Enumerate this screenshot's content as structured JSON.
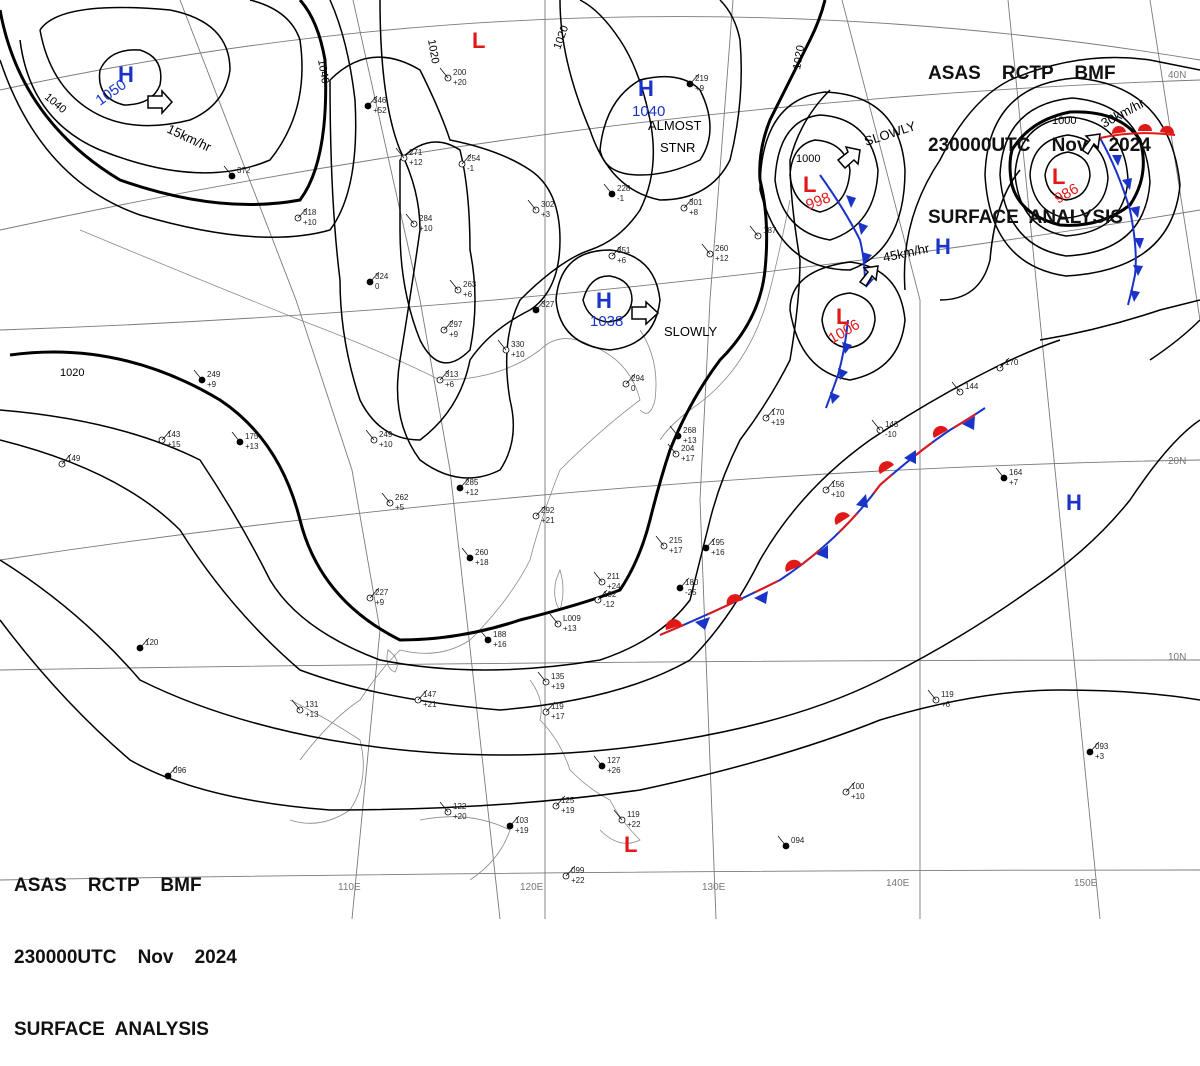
{
  "header": {
    "line1": "ASAS    RCTP    BMF",
    "line2": "230000UTC    Nov    2024",
    "line3": "SURFACE  ANALYSIS"
  },
  "colors": {
    "high": "#1a33c8",
    "low": "#e01818",
    "cold_front": "#1a33c8",
    "warm_front": "#e01818",
    "isobar": "#000000",
    "graticule": "#7a7a7a",
    "coast": "#8a8a8a"
  },
  "graticule_labels": {
    "lon": [
      "110E",
      "120E",
      "130E",
      "140E",
      "150E"
    ],
    "lat": [
      "40N",
      "20N",
      "10N"
    ]
  },
  "pressure_centers": [
    {
      "type": "H",
      "value": "1050",
      "motion": "15km/hr"
    },
    {
      "type": "H",
      "value": "1040",
      "motion": "ALMOST STNR"
    },
    {
      "type": "H",
      "value": "1038",
      "motion": "SLOWLY"
    },
    {
      "type": "L",
      "value": "998",
      "motion": "SLOWLY"
    },
    {
      "type": "L",
      "value": "1006",
      "motion": "45km/hr"
    },
    {
      "type": "L",
      "value": "986",
      "motion": "30km/hr"
    },
    {
      "type": "H",
      "value": "",
      "motion": ""
    },
    {
      "type": "H",
      "value": "",
      "motion": ""
    },
    {
      "type": "L",
      "value": "",
      "motion": ""
    },
    {
      "type": "L",
      "value": "",
      "motion": ""
    }
  ],
  "isobar_labels": [
    "1040",
    "1040",
    "1020",
    "1020",
    "1020",
    "1020",
    "1000",
    "1000"
  ],
  "annotations": {
    "m1050": "15km/hr",
    "m1040a": "ALMOST",
    "m1040b": "STNR",
    "m1038": "SLOWLY",
    "m998": "SLOWLY",
    "m1006": "45km/hr",
    "m986": "30km/hr"
  },
  "stations": [
    {
      "t": "346",
      "v": "+52"
    },
    {
      "t": "271",
      "v": "+12"
    },
    {
      "t": "254",
      "v": "-1"
    },
    {
      "t": "372",
      "v": ""
    },
    {
      "t": "318",
      "v": "+10"
    },
    {
      "t": "284",
      "v": "+10"
    },
    {
      "t": "324",
      "v": "0"
    },
    {
      "t": "263",
      "v": "+6"
    },
    {
      "t": "297",
      "v": "+9"
    },
    {
      "t": "249",
      "v": "+9"
    },
    {
      "t": "313",
      "v": "+6"
    },
    {
      "t": "330",
      "v": "+10"
    },
    {
      "t": "327",
      "v": ""
    },
    {
      "t": "302",
      "v": "+3"
    },
    {
      "t": "351",
      "v": "+6"
    },
    {
      "t": "228",
      "v": "-1"
    },
    {
      "t": "301",
      "v": "+8"
    },
    {
      "t": "260",
      "v": "+12"
    },
    {
      "t": "219",
      "v": "+9"
    },
    {
      "t": "200",
      "v": "+20"
    },
    {
      "t": "143",
      "v": "+15"
    },
    {
      "t": "175",
      "v": "+13"
    },
    {
      "t": "149",
      "v": ""
    },
    {
      "t": "249",
      "v": "+10"
    },
    {
      "t": "285",
      "v": "+12"
    },
    {
      "t": "262",
      "v": "+5"
    },
    {
      "t": "292",
      "v": "+21"
    },
    {
      "t": "260",
      "v": "+18"
    },
    {
      "t": "227",
      "v": "+9"
    },
    {
      "t": "215",
      "v": "+17"
    },
    {
      "t": "195",
      "v": "+16"
    },
    {
      "t": "211",
      "v": "+24"
    },
    {
      "t": "192",
      "v": "-12"
    },
    {
      "t": "188",
      "v": "+16"
    },
    {
      "t": "147",
      "v": "+21"
    },
    {
      "t": "131",
      "v": "+13"
    },
    {
      "t": "120",
      "v": ""
    },
    {
      "t": "135",
      "v": "+19"
    },
    {
      "t": "119",
      "v": "+17"
    },
    {
      "t": "127",
      "v": "+26"
    },
    {
      "t": "125",
      "v": "+19"
    },
    {
      "t": "122",
      "v": "+20"
    },
    {
      "t": "103",
      "v": "+19"
    },
    {
      "t": "119",
      "v": "+22"
    },
    {
      "t": "099",
      "v": "+22"
    },
    {
      "t": "094",
      "v": ""
    },
    {
      "t": "100",
      "v": "+10"
    },
    {
      "t": "119",
      "v": "+6"
    },
    {
      "t": "093",
      "v": "+3"
    },
    {
      "t": "143",
      "v": "-10"
    },
    {
      "t": "156",
      "v": "+10"
    },
    {
      "t": "164",
      "v": "+7"
    },
    {
      "t": "170",
      "v": ""
    },
    {
      "t": "144",
      "v": ""
    },
    {
      "t": "180",
      "v": "-25"
    },
    {
      "t": "204",
      "v": "+17"
    },
    {
      "t": "294",
      "v": "0"
    },
    {
      "t": "268",
      "v": "+13"
    },
    {
      "t": "170",
      "v": "+19"
    },
    {
      "t": "187",
      "v": ""
    },
    {
      "t": "096",
      "v": ""
    },
    {
      "t": "L009",
      "v": "+13"
    }
  ]
}
